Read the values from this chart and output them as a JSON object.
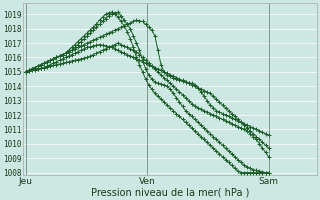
{
  "title": "",
  "xlabel": "Pression niveau de la mer( hPa )",
  "ylabel": "",
  "background_color": "#cde8e2",
  "grid_color": "#ffffff",
  "line_color": "#1a5c28",
  "marker_color": "#1a5c28",
  "ylim_min": 1007.8,
  "ylim_max": 1019.8,
  "yticks": [
    1008,
    1009,
    1010,
    1011,
    1012,
    1013,
    1014,
    1015,
    1016,
    1017,
    1018,
    1019
  ],
  "day_labels": [
    "Jeu",
    "Ven",
    "Sam"
  ],
  "day_positions": [
    0,
    40,
    80
  ],
  "xlim_min": -1,
  "xlim_max": 96,
  "series": [
    [
      1015.0,
      1015.05,
      1015.1,
      1015.15,
      1015.2,
      1015.25,
      1015.3,
      1015.35,
      1015.4,
      1015.45,
      1015.5,
      1015.55,
      1015.6,
      1015.65,
      1015.7,
      1015.75,
      1015.8,
      1015.85,
      1015.9,
      1015.95,
      1016.0,
      1016.1,
      1016.2,
      1016.3,
      1016.4,
      1016.5,
      1016.6,
      1016.7,
      1016.8,
      1016.9,
      1017.0,
      1016.9,
      1016.8,
      1016.7,
      1016.6,
      1016.5,
      1016.4,
      1016.2,
      1016.0,
      1015.8,
      1015.6,
      1015.4,
      1015.2,
      1015.0,
      1014.8,
      1014.6,
      1014.4,
      1014.2,
      1014.0,
      1013.8,
      1013.6,
      1013.4,
      1013.2,
      1013.0,
      1012.8,
      1012.6,
      1012.5,
      1012.4,
      1012.3,
      1012.2,
      1012.1,
      1012.0,
      1011.9,
      1011.8,
      1011.7,
      1011.6,
      1011.5,
      1011.4,
      1011.3,
      1011.2,
      1011.1,
      1011.0,
      1010.9,
      1010.7,
      1010.5,
      1010.3,
      1010.0,
      1009.7,
      1009.4,
      1009.1
    ],
    [
      1015.0,
      1015.05,
      1015.1,
      1015.15,
      1015.2,
      1015.25,
      1015.3,
      1015.4,
      1015.5,
      1015.6,
      1015.7,
      1015.8,
      1015.9,
      1016.0,
      1016.1,
      1016.2,
      1016.3,
      1016.4,
      1016.5,
      1016.6,
      1016.7,
      1016.75,
      1016.8,
      1016.85,
      1016.9,
      1016.85,
      1016.8,
      1016.75,
      1016.7,
      1016.6,
      1016.5,
      1016.4,
      1016.3,
      1016.2,
      1016.1,
      1016.0,
      1015.9,
      1015.8,
      1015.7,
      1015.6,
      1015.5,
      1015.4,
      1015.3,
      1015.2,
      1015.1,
      1015.0,
      1014.9,
      1014.8,
      1014.7,
      1014.6,
      1014.5,
      1014.4,
      1014.3,
      1014.2,
      1014.1,
      1014.0,
      1013.9,
      1013.8,
      1013.7,
      1013.6,
      1013.5,
      1013.3,
      1013.1,
      1012.9,
      1012.7,
      1012.5,
      1012.3,
      1012.1,
      1011.9,
      1011.7,
      1011.5,
      1011.3,
      1011.1,
      1010.9,
      1010.7,
      1010.5,
      1010.3,
      1010.1,
      1009.9,
      1009.7
    ],
    [
      1015.0,
      1015.1,
      1015.2,
      1015.3,
      1015.4,
      1015.5,
      1015.6,
      1015.7,
      1015.8,
      1015.9,
      1016.0,
      1016.1,
      1016.2,
      1016.3,
      1016.4,
      1016.5,
      1016.6,
      1016.7,
      1016.8,
      1016.9,
      1017.0,
      1017.1,
      1017.2,
      1017.3,
      1017.4,
      1017.5,
      1017.6,
      1017.7,
      1017.8,
      1017.9,
      1018.0,
      1018.1,
      1018.2,
      1018.3,
      1018.4,
      1018.5,
      1018.6,
      1018.55,
      1018.5,
      1018.3,
      1018.1,
      1017.9,
      1017.5,
      1016.5,
      1015.5,
      1015.0,
      1014.8,
      1014.7,
      1014.6,
      1014.5,
      1014.4,
      1014.35,
      1014.3,
      1014.25,
      1014.2,
      1014.1,
      1013.9,
      1013.6,
      1013.3,
      1013.0,
      1012.7,
      1012.5,
      1012.3,
      1012.2,
      1012.1,
      1012.0,
      1011.9,
      1011.8,
      1011.7,
      1011.6,
      1011.5,
      1011.4,
      1011.3,
      1011.2,
      1011.1,
      1011.0,
      1010.9,
      1010.8,
      1010.7,
      1010.6
    ],
    [
      1015.0,
      1015.1,
      1015.2,
      1015.3,
      1015.4,
      1015.5,
      1015.6,
      1015.7,
      1015.8,
      1015.9,
      1016.0,
      1016.1,
      1016.2,
      1016.3,
      1016.4,
      1016.5,
      1016.7,
      1016.9,
      1017.1,
      1017.3,
      1017.5,
      1017.7,
      1017.9,
      1018.1,
      1018.3,
      1018.5,
      1018.7,
      1018.9,
      1019.0,
      1019.1,
      1019.15,
      1018.9,
      1018.6,
      1018.3,
      1018.0,
      1017.5,
      1017.0,
      1016.5,
      1015.8,
      1015.2,
      1014.8,
      1014.5,
      1014.3,
      1014.2,
      1014.15,
      1014.1,
      1014.0,
      1013.8,
      1013.5,
      1013.2,
      1012.9,
      1012.6,
      1012.3,
      1012.1,
      1011.9,
      1011.7,
      1011.5,
      1011.3,
      1011.1,
      1010.9,
      1010.7,
      1010.5,
      1010.3,
      1010.1,
      1009.9,
      1009.7,
      1009.5,
      1009.3,
      1009.1,
      1008.9,
      1008.7,
      1008.5,
      1008.4,
      1008.3,
      1008.2,
      1008.15,
      1008.1,
      1008.05,
      1008.0,
      1008.0
    ],
    [
      1015.0,
      1015.1,
      1015.2,
      1015.3,
      1015.4,
      1015.5,
      1015.6,
      1015.7,
      1015.8,
      1015.9,
      1016.0,
      1016.1,
      1016.2,
      1016.3,
      1016.5,
      1016.7,
      1016.9,
      1017.1,
      1017.3,
      1017.5,
      1017.7,
      1017.9,
      1018.1,
      1018.3,
      1018.6,
      1018.8,
      1019.0,
      1019.1,
      1019.15,
      1019.05,
      1018.8,
      1018.5,
      1018.2,
      1017.8,
      1017.3,
      1016.7,
      1016.0,
      1015.5,
      1015.0,
      1014.5,
      1014.1,
      1013.8,
      1013.5,
      1013.3,
      1013.1,
      1012.9,
      1012.7,
      1012.5,
      1012.3,
      1012.1,
      1011.9,
      1011.7,
      1011.5,
      1011.3,
      1011.1,
      1010.9,
      1010.7,
      1010.5,
      1010.3,
      1010.1,
      1009.9,
      1009.7,
      1009.5,
      1009.3,
      1009.1,
      1008.9,
      1008.7,
      1008.5,
      1008.3,
      1008.1,
      1008.0,
      1008.0,
      1008.0,
      1008.0,
      1008.0,
      1008.0,
      1008.0,
      1008.0,
      1008.0,
      1008.0
    ]
  ]
}
